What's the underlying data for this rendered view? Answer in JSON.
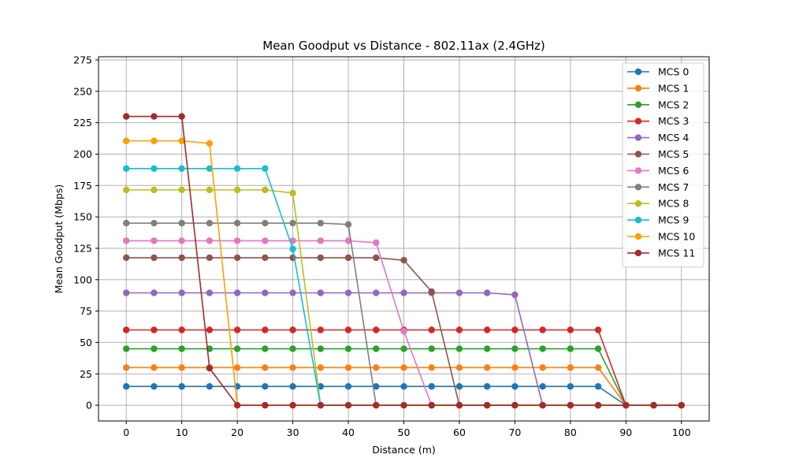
{
  "chart_data": {
    "type": "line",
    "title": "Mean Goodput vs Distance - 802.11ax (2.4GHz)",
    "xlabel": "Distance (m)",
    "ylabel": "Mean Goodput (Mbps)",
    "xlim": [
      -5,
      105
    ],
    "ylim": [
      -12.5,
      277.5
    ],
    "xticks": [
      0,
      10,
      20,
      30,
      40,
      50,
      60,
      70,
      80,
      90,
      100
    ],
    "yticks": [
      0,
      25,
      50,
      75,
      100,
      125,
      150,
      175,
      200,
      225,
      250,
      275
    ],
    "grid": true,
    "legend_position": "top-right",
    "x": [
      0,
      5,
      10,
      15,
      20,
      25,
      30,
      35,
      40,
      45,
      50,
      55,
      60,
      65,
      70,
      75,
      80,
      85,
      90,
      95,
      100
    ],
    "series": [
      {
        "name": "MCS 0",
        "color": "#1f77b4",
        "values": [
          15,
          15,
          15,
          15,
          15,
          15,
          15,
          15,
          15,
          15,
          15,
          15,
          15,
          15,
          15,
          15,
          15,
          15,
          0,
          0,
          0
        ]
      },
      {
        "name": "MCS 1",
        "color": "#ff7f0e",
        "values": [
          30,
          30,
          30,
          30,
          30,
          30,
          30,
          30,
          30,
          30,
          30,
          30,
          30,
          30,
          30,
          30,
          30,
          30,
          0,
          0,
          0
        ]
      },
      {
        "name": "MCS 2",
        "color": "#2ca02c",
        "values": [
          45,
          45,
          45,
          45,
          45,
          45,
          45,
          45,
          45,
          45,
          45,
          45,
          45,
          45,
          45,
          45,
          45,
          45,
          0,
          0,
          0
        ]
      },
      {
        "name": "MCS 3",
        "color": "#d62728",
        "values": [
          60,
          60,
          60,
          60,
          60,
          60,
          60,
          60,
          60,
          60,
          60,
          60,
          60,
          60,
          60,
          60,
          60,
          60,
          0,
          0,
          0
        ]
      },
      {
        "name": "MCS 4",
        "color": "#9467bd",
        "values": [
          89.5,
          89.5,
          89.5,
          89.5,
          89.5,
          89.5,
          89.5,
          89.5,
          89.5,
          89.5,
          89.5,
          89.5,
          89.5,
          89.5,
          88,
          0,
          0,
          0,
          0,
          0,
          0
        ]
      },
      {
        "name": "MCS 5",
        "color": "#8c564b",
        "values": [
          117.5,
          117.5,
          117.5,
          117.5,
          117.5,
          117.5,
          117.5,
          117.5,
          117.5,
          117.5,
          115.5,
          90.5,
          0,
          0,
          0,
          0,
          0,
          0,
          0,
          0,
          0
        ]
      },
      {
        "name": "MCS 6",
        "color": "#e377c2",
        "values": [
          131,
          131,
          131,
          131,
          131,
          131,
          131,
          131,
          131,
          129.5,
          59,
          0,
          0,
          0,
          0,
          0,
          0,
          0,
          0,
          0,
          0
        ]
      },
      {
        "name": "MCS 7",
        "color": "#7f7f7f",
        "values": [
          145,
          145,
          145,
          145,
          145,
          145,
          145,
          145,
          144,
          0,
          0,
          0,
          0,
          0,
          0,
          0,
          0,
          0,
          0,
          0,
          0
        ]
      },
      {
        "name": "MCS 8",
        "color": "#bcbd22",
        "values": [
          171.5,
          171.5,
          171.5,
          171.5,
          171.5,
          171.5,
          169,
          0,
          0,
          0,
          0,
          0,
          0,
          0,
          0,
          0,
          0,
          0,
          0,
          0,
          0
        ]
      },
      {
        "name": "MCS 9",
        "color": "#17becf",
        "values": [
          188.5,
          188.5,
          188.5,
          188.5,
          188.5,
          188.5,
          124.5,
          0,
          0,
          0,
          0,
          0,
          0,
          0,
          0,
          0,
          0,
          0,
          0,
          0,
          0
        ]
      },
      {
        "name": "MCS 10",
        "color": "#ff9f00",
        "values": [
          210.5,
          210.5,
          210.5,
          208.5,
          0,
          0,
          0,
          0,
          0,
          0,
          0,
          0,
          0,
          0,
          0,
          0,
          0,
          0,
          0,
          0,
          0
        ]
      },
      {
        "name": "MCS 11",
        "color": "#a52a2a",
        "values": [
          230,
          230,
          230,
          29.5,
          0,
          0,
          0,
          0,
          0,
          0,
          0,
          0,
          0,
          0,
          0,
          0,
          0,
          0,
          0,
          0,
          0
        ]
      }
    ]
  }
}
